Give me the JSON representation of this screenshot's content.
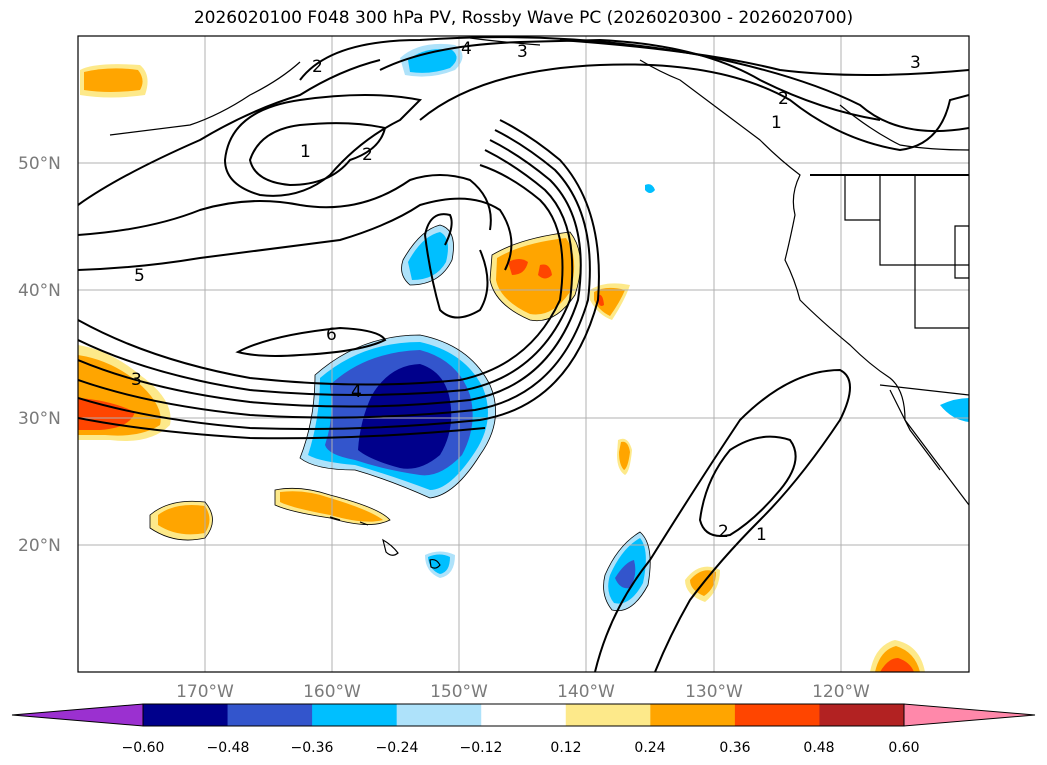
{
  "title": "2026020100 F048 300 hPa PV, Rossby Wave PC (2026020300 - 2026020700)",
  "latitude_labels": [
    "50°N",
    "40°N",
    "30°N",
    "20°N"
  ],
  "longitude_labels": [
    "170°W",
    "160°W",
    "150°W",
    "140°W",
    "130°W",
    "120°W"
  ],
  "contour_labels": [
    "4",
    "3",
    "3",
    "2",
    "2",
    "1",
    "1",
    "2",
    "5",
    "6",
    "3",
    "4",
    "2",
    "1"
  ],
  "colorbar": {
    "ticks": [
      "−0.60",
      "−0.48",
      "−0.36",
      "−0.24",
      "−0.12",
      "0.12",
      "0.24",
      "0.36",
      "0.48",
      "0.60"
    ],
    "colors": [
      "#9b30d0",
      "#00008b",
      "#3355cc",
      "#00bfff",
      "#aee2fa",
      "#ffffff",
      "#fde98a",
      "#ffa500",
      "#ff4500",
      "#b22222",
      "#ff88aa"
    ]
  },
  "colors": {
    "blue_light": "#aee2fa",
    "blue": "#00bfff",
    "blue_mid": "#3355cc",
    "blue_dark": "#00008b",
    "yellow": "#fde98a",
    "orange": "#ffa500",
    "red_orange": "#ff4500"
  }
}
